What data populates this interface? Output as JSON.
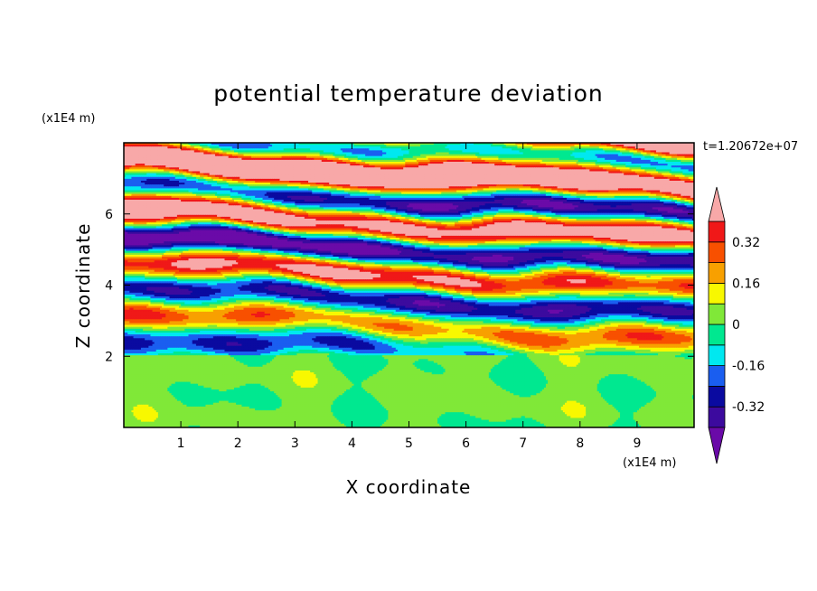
{
  "chart_data": {
    "type": "heatmap",
    "title": "potential temperature deviation",
    "xlabel": "X coordinate",
    "ylabel": "Z coordinate",
    "x_unit": "(x1E4 m)",
    "y_unit": "(x1E4 m)",
    "time_label": "t=1.20672e+07",
    "xlim": [
      0,
      10
    ],
    "ylim": [
      0,
      8
    ],
    "x_ticks": [
      1,
      2,
      3,
      4,
      5,
      6,
      7,
      8,
      9
    ],
    "y_ticks": [
      2,
      4,
      6
    ],
    "colorbar": {
      "levels": [
        -0.4,
        -0.32,
        -0.24,
        -0.16,
        -0.08,
        0,
        0.08,
        0.16,
        0.24,
        0.32,
        0.4
      ],
      "labels": [
        "-0.32",
        "-0.16",
        "0",
        "0.16",
        "0.32"
      ],
      "label_values": [
        -0.32,
        -0.16,
        0,
        0.16,
        0.32
      ],
      "colors": [
        "#6a0aa8",
        "#3c0a9e",
        "#0a0aa0",
        "#1a5ef0",
        "#00e8f0",
        "#00e890",
        "#80e838",
        "#f8f800",
        "#f8a000",
        "#f85000",
        "#f01818",
        "#f8a8a8"
      ],
      "extend": "both"
    }
  }
}
